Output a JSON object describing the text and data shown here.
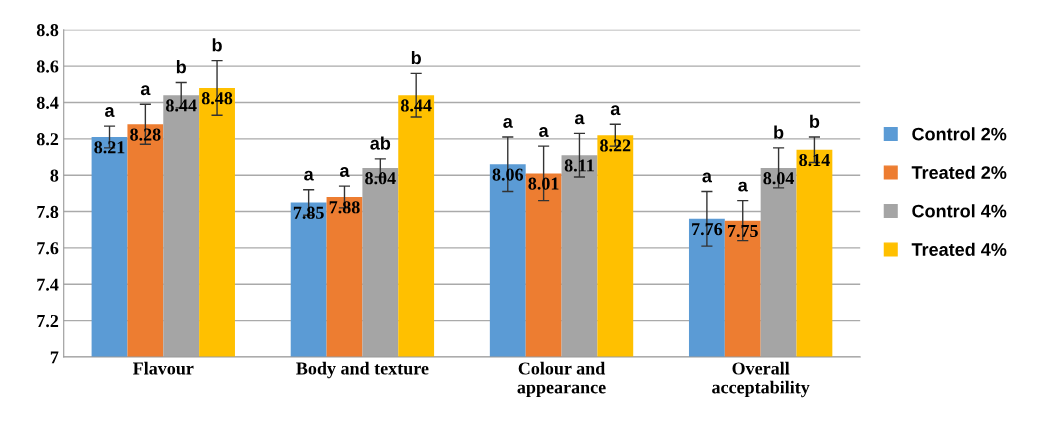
{
  "chart_data": {
    "type": "bar",
    "categories": [
      "Flavour",
      "Body and texture",
      "Colour and\nappearance",
      "Overall\nacceptability"
    ],
    "series": [
      {
        "name": "Control 2%",
        "color": "#5b9bd5",
        "values": [
          8.21,
          7.85,
          8.06,
          7.76
        ],
        "errors": [
          0.06,
          0.07,
          0.15,
          0.15
        ]
      },
      {
        "name": "Treated 2%",
        "color": "#ed7d31",
        "values": [
          8.28,
          7.88,
          8.01,
          7.75
        ],
        "errors": [
          0.11,
          0.06,
          0.15,
          0.11
        ]
      },
      {
        "name": "Control 4%",
        "color": "#a5a5a5",
        "values": [
          8.44,
          8.04,
          8.11,
          8.04
        ],
        "errors": [
          0.07,
          0.05,
          0.12,
          0.11
        ]
      },
      {
        "name": "Treated 4%",
        "color": "#ffc000",
        "values": [
          8.48,
          8.44,
          8.22,
          8.14
        ],
        "errors": [
          0.15,
          0.12,
          0.06,
          0.07
        ]
      }
    ],
    "ylim": [
      7,
      8.8
    ],
    "yticks": [
      7,
      7.2,
      7.4,
      7.6,
      7.8,
      8,
      8.2,
      8.4,
      8.6,
      8.8
    ],
    "grid": "y",
    "legend": "right",
    "data_labels": true,
    "annotations": [
      "a",
      "a",
      "b",
      "b",
      "a",
      "a",
      "ab",
      "b",
      "a",
      "a",
      "a",
      "a",
      "a",
      "a",
      "b",
      "b"
    ]
  }
}
